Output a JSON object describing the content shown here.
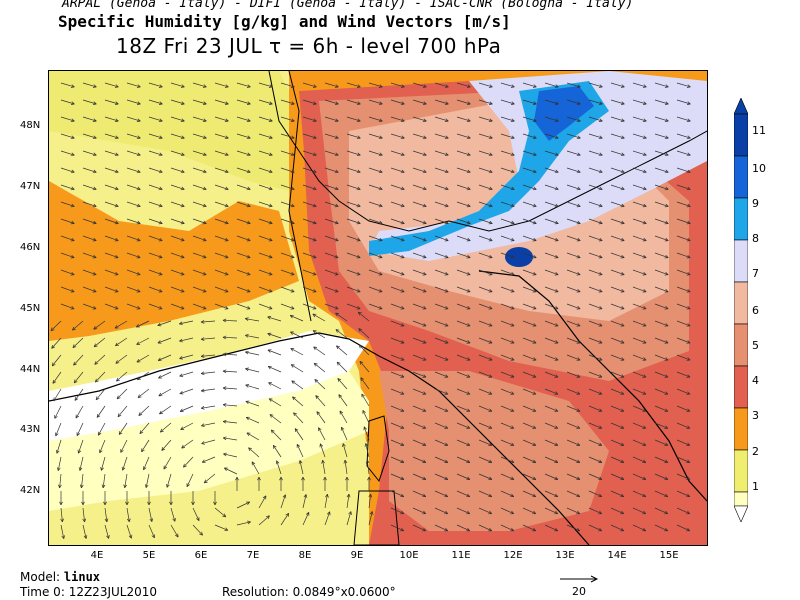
{
  "header": {
    "institutions": "ARPAL (Genoa - Italy)  - DIFI (Genoa - Italy)  - ISAC-CNR (Bologna - Italy)",
    "field_title": "Specific Humidity [g/kg] and Wind Vectors [m/s]",
    "time_level": "18Z Fri 23 JUL  τ = 6h  -  level 700 hPa"
  },
  "map": {
    "lat_labels": [
      "48N",
      "47N",
      "46N",
      "45N",
      "44N",
      "43N",
      "42N"
    ],
    "lon_labels": [
      "4E",
      "5E",
      "6E",
      "7E",
      "8E",
      "9E",
      "10E",
      "11E",
      "12E",
      "13E",
      "14E",
      "15E"
    ],
    "region": "Northern Italy / Alps",
    "field_range_g_per_kg": [
      1,
      11
    ]
  },
  "colorbar": {
    "levels": [
      "1",
      "2",
      "3",
      "4",
      "5",
      "6",
      "7",
      "8",
      "9",
      "10",
      "11"
    ],
    "colors": [
      "#ffffc0",
      "#f0ee70",
      "#f79a1c",
      "#e1604f",
      "#e59070",
      "#f1b9a0",
      "#dcdcf8",
      "#1ea6e8",
      "#1565d8",
      "#0a3fa8"
    ]
  },
  "footer": {
    "model_prefix": "Model:",
    "model_name": "linux",
    "time0_prefix": "Time 0:",
    "time0_value": "12Z23JUL2010",
    "resolution_prefix": "Resolution:",
    "resolution_value": "0.0849°x0.0600°",
    "ref_vector_label": "20"
  }
}
